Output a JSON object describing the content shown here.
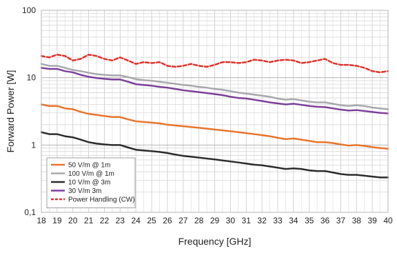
{
  "chart_data": {
    "type": "line",
    "title": "",
    "xlabel": "Frequency [GHz]",
    "ylabel": "Forward Power [W]",
    "xlim": [
      18,
      40
    ],
    "ylim": [
      0.1,
      100
    ],
    "y_scale": "log",
    "x_ticks": [
      "18",
      "19",
      "20",
      "21",
      "22",
      "23",
      "24",
      "25",
      "26",
      "27",
      "28",
      "29",
      "30",
      "31",
      "32",
      "33",
      "34",
      "35",
      "36",
      "37",
      "38",
      "39",
      "40"
    ],
    "y_ticks": [
      {
        "value": 0.1,
        "label": "0,1"
      },
      {
        "value": 1,
        "label": "1"
      },
      {
        "value": 10,
        "label": "10"
      },
      {
        "value": 100,
        "label": "100"
      }
    ],
    "grid": true,
    "legend_position": "bottom-left",
    "x": [
      18,
      18.5,
      19,
      19.5,
      20,
      20.5,
      21,
      21.5,
      22,
      22.5,
      23,
      23.5,
      24,
      24.5,
      25,
      25.5,
      26,
      26.5,
      27,
      27.5,
      28,
      28.5,
      29,
      29.5,
      30,
      30.5,
      31,
      31.5,
      32,
      32.5,
      33,
      33.5,
      34,
      34.5,
      35,
      35.5,
      36,
      36.5,
      37,
      37.5,
      38,
      38.5,
      39,
      39.5,
      40
    ],
    "series": [
      {
        "name": "50 V/m @ 1m",
        "color": "#e8742a",
        "dash": "solid",
        "values": [
          4.0,
          3.8,
          3.8,
          3.5,
          3.4,
          3.1,
          2.9,
          2.8,
          2.7,
          2.6,
          2.6,
          2.4,
          2.25,
          2.2,
          2.15,
          2.1,
          2.0,
          1.95,
          1.9,
          1.85,
          1.8,
          1.75,
          1.7,
          1.65,
          1.6,
          1.55,
          1.5,
          1.45,
          1.4,
          1.35,
          1.28,
          1.22,
          1.25,
          1.2,
          1.15,
          1.1,
          1.1,
          1.07,
          1.02,
          0.98,
          1.0,
          0.97,
          0.93,
          0.9,
          0.88
        ]
      },
      {
        "name": "100 V/m @ 1m",
        "color": "#a6a8ab",
        "dash": "solid",
        "values": [
          16,
          15,
          15,
          14,
          13,
          12.5,
          11.8,
          11.3,
          11.0,
          10.8,
          10.8,
          10.2,
          9.5,
          9.2,
          9.0,
          8.7,
          8.4,
          8.1,
          7.8,
          7.6,
          7.3,
          7.1,
          6.8,
          6.6,
          6.3,
          6.0,
          5.8,
          5.6,
          5.4,
          5.2,
          4.9,
          4.7,
          4.8,
          4.6,
          4.4,
          4.3,
          4.3,
          4.1,
          3.9,
          3.8,
          3.9,
          3.8,
          3.6,
          3.5,
          3.4
        ]
      },
      {
        "name": "10 V/m @ 3m",
        "color": "#2b2b2b",
        "dash": "solid",
        "values": [
          1.55,
          1.45,
          1.45,
          1.35,
          1.3,
          1.2,
          1.1,
          1.05,
          1.02,
          1.0,
          1.0,
          0.92,
          0.85,
          0.83,
          0.81,
          0.79,
          0.76,
          0.72,
          0.69,
          0.67,
          0.65,
          0.63,
          0.61,
          0.59,
          0.57,
          0.55,
          0.53,
          0.51,
          0.5,
          0.48,
          0.46,
          0.44,
          0.45,
          0.44,
          0.42,
          0.41,
          0.41,
          0.39,
          0.37,
          0.36,
          0.36,
          0.35,
          0.34,
          0.33,
          0.33
        ]
      },
      {
        "name": "30 V/m 3m",
        "color": "#7b3f99",
        "dash": "solid",
        "values": [
          14,
          13.5,
          13.5,
          12.5,
          12,
          11,
          10.3,
          9.9,
          9.6,
          9.4,
          9.4,
          8.7,
          8.0,
          7.8,
          7.6,
          7.3,
          7.1,
          6.8,
          6.5,
          6.3,
          6.1,
          5.9,
          5.7,
          5.5,
          5.2,
          5.0,
          4.9,
          4.7,
          4.5,
          4.3,
          4.15,
          4.0,
          4.1,
          3.95,
          3.8,
          3.7,
          3.65,
          3.5,
          3.35,
          3.25,
          3.3,
          3.2,
          3.1,
          3.0,
          2.95
        ]
      },
      {
        "name": "Power Handling (CW)",
        "color": "#e0302a",
        "dash": "dashed",
        "values": [
          21,
          20,
          22,
          21,
          18,
          19,
          22,
          21,
          19,
          18,
          20,
          18,
          16,
          17,
          16.5,
          17,
          15,
          14.5,
          15,
          16,
          15,
          14.5,
          15.5,
          17,
          17,
          16.5,
          17,
          18.5,
          18,
          17,
          18,
          18.5,
          18,
          16.5,
          17,
          18,
          19,
          16.5,
          15.5,
          15.5,
          15,
          14,
          12.5,
          12,
          12.5
        ]
      }
    ]
  }
}
